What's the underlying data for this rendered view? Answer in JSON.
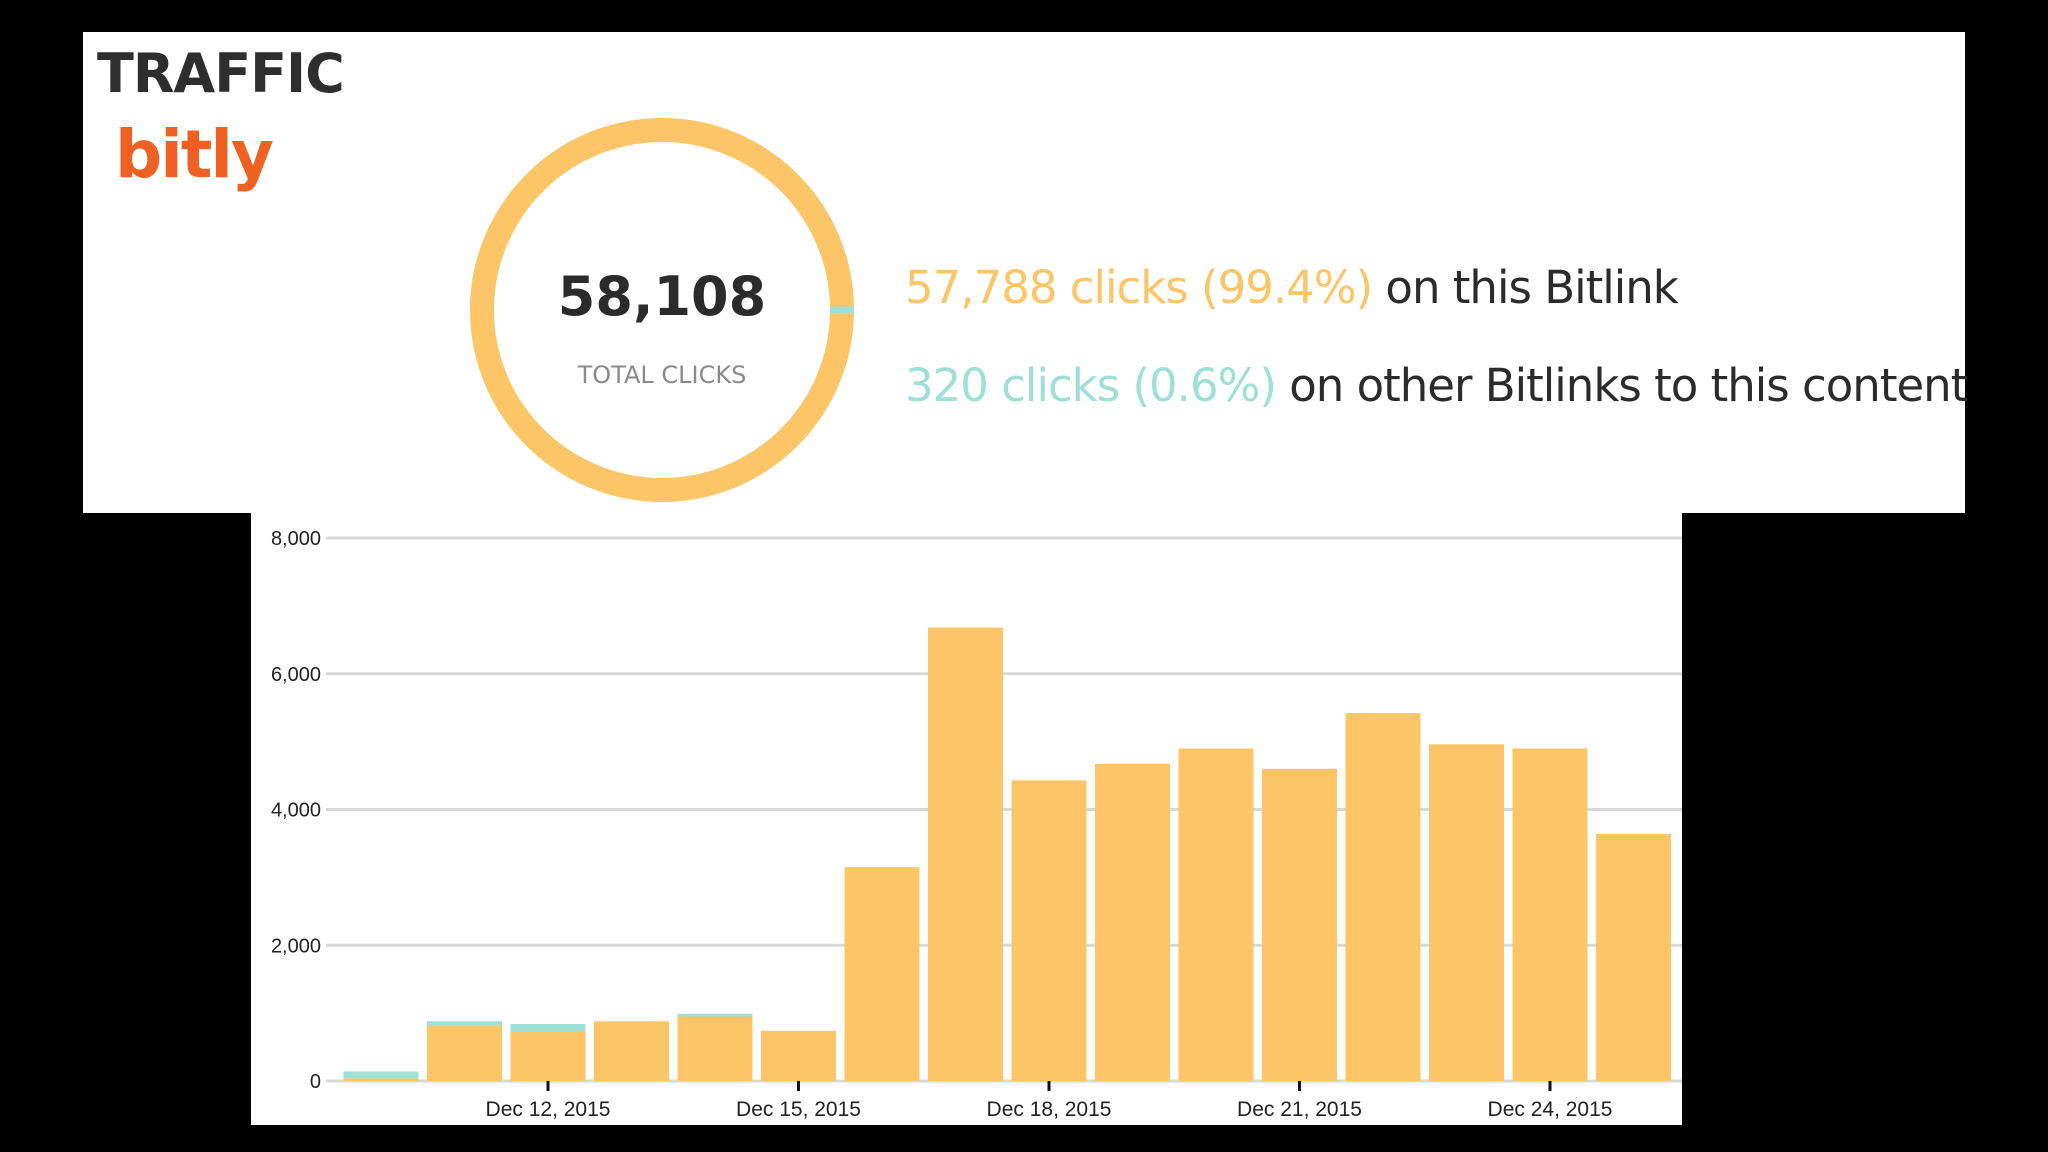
{
  "header": {
    "title": "TRAFFIC",
    "logo_text": "bitly"
  },
  "summary": {
    "total": "58,108",
    "total_label": "TOTAL CLICKS",
    "primary_highlight": "57,788 clicks (99.4%)",
    "primary_rest": " on this Bitlink",
    "other_highlight": "320 clicks (0.6%)",
    "other_rest": " on other Bitlinks to this content",
    "donut_fraction_primary": 0.994,
    "donut_fraction_other": 0.006
  },
  "colors": {
    "primary": "#fcc668",
    "other": "#9edfd6",
    "text": "#2b2b2b",
    "grid": "#d8d8d8"
  },
  "chart_data": {
    "type": "bar",
    "stacked": true,
    "x": [
      "2015-12-10",
      "2015-12-11",
      "2015-12-12",
      "2015-12-13",
      "2015-12-14",
      "2015-12-15",
      "2015-12-16",
      "2015-12-17",
      "2015-12-18",
      "2015-12-19",
      "2015-12-20",
      "2015-12-21",
      "2015-12-22",
      "2015-12-23",
      "2015-12-24",
      "2015-12-25"
    ],
    "series": [
      {
        "values": [
          40,
          820,
          730,
          880,
          950,
          740,
          3150,
          6680,
          4430,
          4670,
          4900,
          4600,
          5420,
          4960,
          4900,
          3640
        ]
      },
      {
        "values": [
          100,
          60,
          110,
          0,
          40,
          0,
          0,
          0,
          0,
          0,
          0,
          0,
          0,
          0,
          0,
          0
        ]
      }
    ],
    "xticks": [
      {
        "x": "2015-12-12",
        "label": "Dec 12, 2015"
      },
      {
        "x": "2015-12-15",
        "label": "Dec 15, 2015"
      },
      {
        "x": "2015-12-18",
        "label": "Dec 18, 2015"
      },
      {
        "x": "2015-12-21",
        "label": "Dec 21, 2015"
      },
      {
        "x": "2015-12-24",
        "label": "Dec 24, 2015"
      }
    ],
    "yticks": [
      0,
      2000,
      4000,
      6000,
      8000
    ],
    "ytick_labels": [
      "0",
      "2,000",
      "4,000",
      "6,000",
      "8,000"
    ],
    "ylim": [
      0,
      8000
    ],
    "grid": true,
    "title": "",
    "xlabel": "",
    "ylabel": ""
  }
}
